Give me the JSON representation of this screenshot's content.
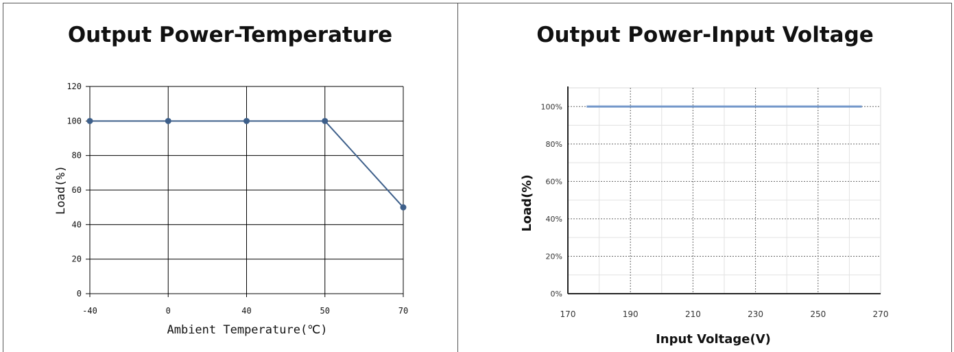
{
  "colors": {
    "line_left": "#3d5f8a",
    "line_right": "#7196c9"
  },
  "panels": {
    "left": {
      "title": "Output Power-Temperature"
    },
    "right": {
      "title": "Output Power-Input Voltage"
    }
  },
  "chart_data": [
    {
      "type": "line",
      "title": "Output Power-Temperature",
      "xlabel": "Ambient Temperature(℃)",
      "ylabel": "Load(%)",
      "x_scale": "categorical",
      "categories": [
        "-40",
        "0",
        "40",
        "50",
        "70"
      ],
      "values": [
        100,
        100,
        100,
        100,
        50
      ],
      "y_ticks": [
        "0",
        "20",
        "40",
        "60",
        "80",
        "100",
        "120"
      ],
      "ylim": [
        0,
        120
      ],
      "markers": true,
      "grid": true
    },
    {
      "type": "line",
      "title": "Output Power-Input Voltage",
      "xlabel": "Input Voltage(V)",
      "ylabel": "Load(%)",
      "x_ticks": [
        "170",
        "190",
        "210",
        "230",
        "250",
        "270"
      ],
      "y_ticks": [
        "0%",
        "20%",
        "40%",
        "60%",
        "80%",
        "100%"
      ],
      "xlim": [
        170,
        270
      ],
      "ylim": [
        0,
        110
      ],
      "x": [
        176,
        264
      ],
      "values": [
        100,
        100
      ],
      "grid": true
    }
  ]
}
